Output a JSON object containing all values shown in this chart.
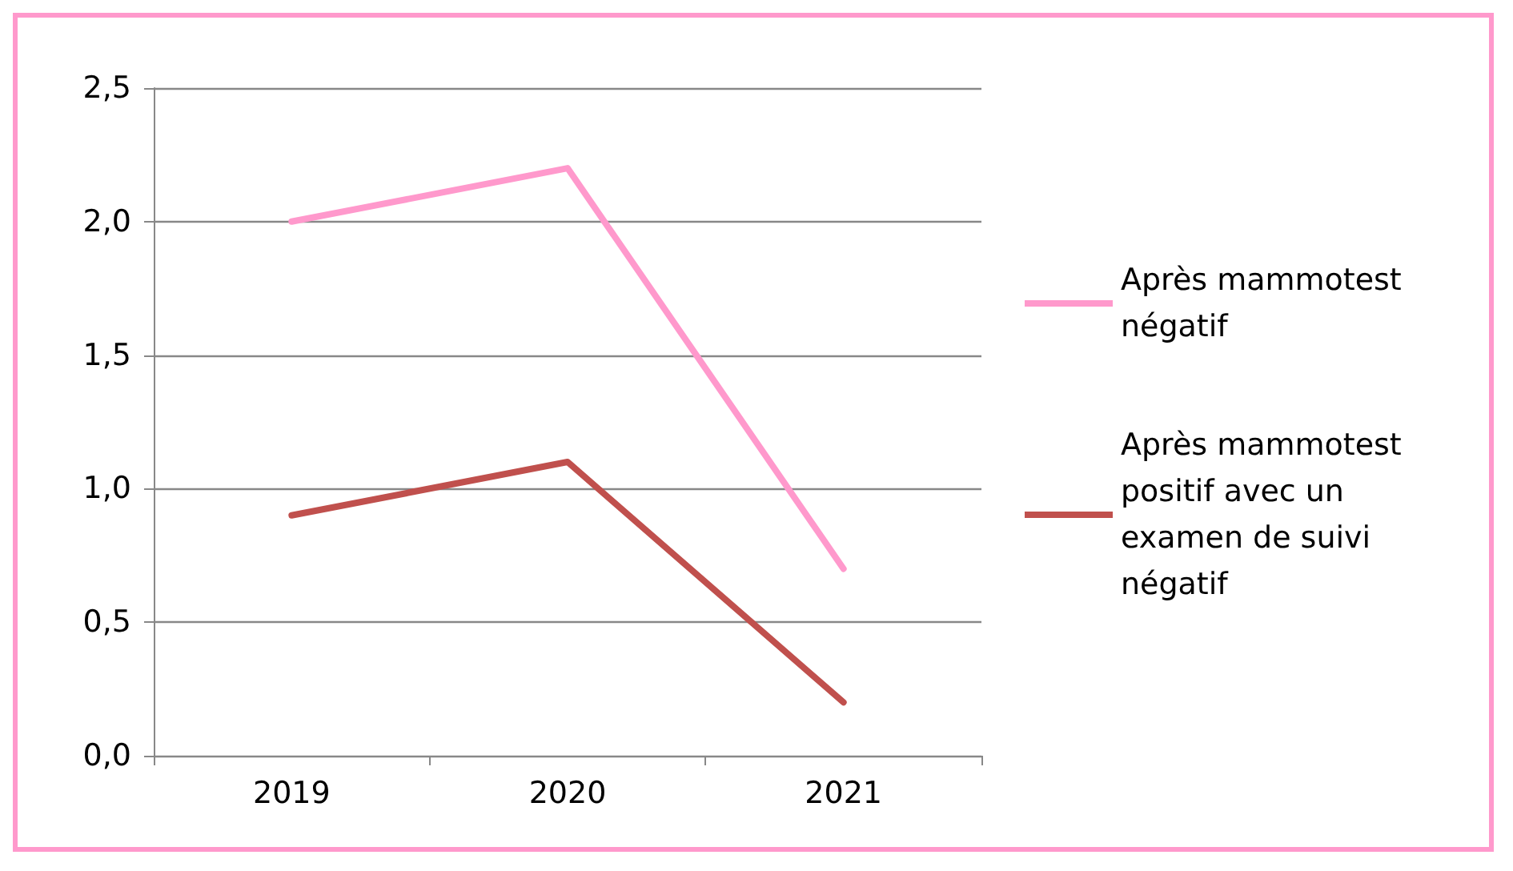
{
  "chart_data": {
    "type": "line",
    "categories": [
      "2019",
      "2020",
      "2021"
    ],
    "series": [
      {
        "name": "Après mammotest négatif",
        "color": "#ff99cc",
        "values": [
          2.0,
          2.2,
          0.7
        ]
      },
      {
        "name": "Après mammotest positif avec un examen de suivi négatif",
        "color": "#c0504d",
        "values": [
          0.9,
          1.1,
          0.2
        ]
      }
    ],
    "ylim": [
      0,
      2.5
    ],
    "yticks": [
      {
        "value": 0,
        "label": "0,0"
      },
      {
        "value": 0.5,
        "label": "0,5"
      },
      {
        "value": 1,
        "label": "1,0"
      },
      {
        "value": 1.5,
        "label": "1,5"
      },
      {
        "value": 2,
        "label": "2,0"
      },
      {
        "value": 2.5,
        "label": "2,5"
      }
    ],
    "grid": "y",
    "legend": "right",
    "marker": "none",
    "line_style": "solid"
  }
}
